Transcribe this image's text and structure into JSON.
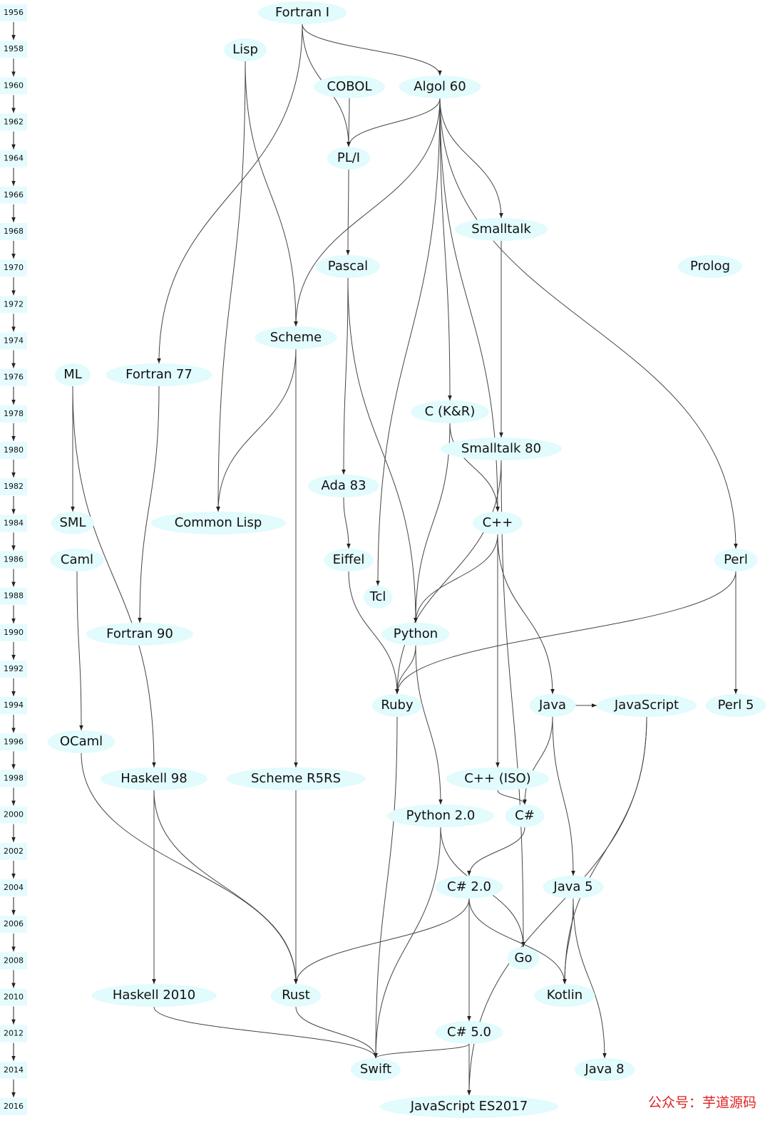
{
  "years": [
    "1956",
    "1958",
    "1960",
    "1962",
    "1964",
    "1966",
    "1968",
    "1970",
    "1972",
    "1974",
    "1976",
    "1978",
    "1980",
    "1982",
    "1984",
    "1986",
    "1988",
    "1990",
    "1992",
    "1994",
    "1996",
    "1998",
    "2000",
    "2002",
    "2004",
    "2006",
    "2008",
    "2010",
    "2012",
    "2014",
    "2016"
  ],
  "nodes": [
    {
      "label": "Fortran I"
    },
    {
      "label": "Lisp"
    },
    {
      "label": "COBOL"
    },
    {
      "label": "Algol 60"
    },
    {
      "label": "PL/I"
    },
    {
      "label": "Smalltalk"
    },
    {
      "label": "Pascal"
    },
    {
      "label": "Prolog"
    },
    {
      "label": "Scheme"
    },
    {
      "label": "ML"
    },
    {
      "label": "Fortran 77"
    },
    {
      "label": "C (K&R)"
    },
    {
      "label": "Smalltalk 80"
    },
    {
      "label": "Ada 83"
    },
    {
      "label": "SML"
    },
    {
      "label": "Common Lisp"
    },
    {
      "label": "C++"
    },
    {
      "label": "Caml"
    },
    {
      "label": "Eiffel"
    },
    {
      "label": "Perl"
    },
    {
      "label": "Tcl"
    },
    {
      "label": "Fortran 90"
    },
    {
      "label": "Python"
    },
    {
      "label": "Ruby"
    },
    {
      "label": "Java"
    },
    {
      "label": "JavaScript"
    },
    {
      "label": "Perl 5"
    },
    {
      "label": "OCaml"
    },
    {
      "label": "Haskell 98"
    },
    {
      "label": "Scheme R5RS"
    },
    {
      "label": "C++ (ISO)"
    },
    {
      "label": "Python 2.0"
    },
    {
      "label": "C#"
    },
    {
      "label": "C# 2.0"
    },
    {
      "label": "Java 5"
    },
    {
      "label": "Go"
    },
    {
      "label": "Haskell 2010"
    },
    {
      "label": "Rust"
    },
    {
      "label": "Kotlin"
    },
    {
      "label": "C# 5.0"
    },
    {
      "label": "Swift"
    },
    {
      "label": "Java 8"
    },
    {
      "label": "JavaScript ES2017"
    }
  ],
  "watermark": "公众号：芋道源码"
}
